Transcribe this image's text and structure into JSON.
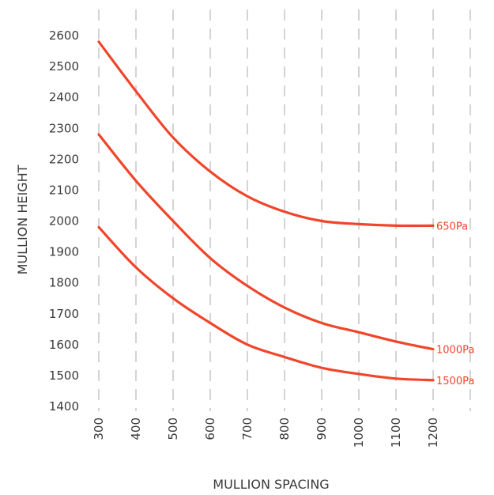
{
  "chart_data": {
    "type": "line",
    "title": "",
    "xlabel": "MULLION SPACING",
    "ylabel": "MULLION HEIGHT",
    "xlim": [
      300,
      1200
    ],
    "ylim": [
      1400,
      2600
    ],
    "x_ticks": [
      300,
      400,
      500,
      600,
      700,
      800,
      900,
      1000,
      1100,
      1200
    ],
    "y_ticks": [
      1400,
      1500,
      1600,
      1700,
      1800,
      1900,
      2000,
      2100,
      2200,
      2300,
      2400,
      2500,
      2600
    ],
    "grid": "vertical",
    "x": [
      300,
      400,
      500,
      600,
      700,
      800,
      900,
      1000,
      1100,
      1200
    ],
    "series": [
      {
        "name": "650Pa",
        "values": [
          2580,
          2420,
          2270,
          2160,
          2080,
          2030,
          2000,
          1990,
          1985,
          1985
        ]
      },
      {
        "name": "1000Pa",
        "values": [
          2280,
          2130,
          2000,
          1880,
          1790,
          1720,
          1670,
          1640,
          1610,
          1585
        ]
      },
      {
        "name": "1500Pa",
        "values": [
          1980,
          1850,
          1750,
          1670,
          1600,
          1560,
          1525,
          1505,
          1490,
          1485
        ]
      }
    ],
    "line_color": "#f0452a"
  }
}
